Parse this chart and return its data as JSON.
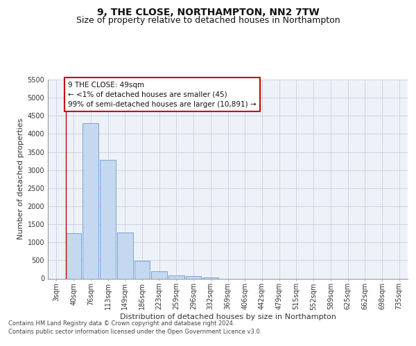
{
  "title": "9, THE CLOSE, NORTHAMPTON, NN2 7TW",
  "subtitle": "Size of property relative to detached houses in Northampton",
  "xlabel": "Distribution of detached houses by size in Northampton",
  "ylabel": "Number of detached properties",
  "categories": [
    "3sqm",
    "40sqm",
    "76sqm",
    "113sqm",
    "149sqm",
    "186sqm",
    "223sqm",
    "259sqm",
    "296sqm",
    "332sqm",
    "369sqm",
    "406sqm",
    "442sqm",
    "479sqm",
    "515sqm",
    "552sqm",
    "589sqm",
    "625sqm",
    "662sqm",
    "698sqm",
    "735sqm"
  ],
  "bar_values": [
    0,
    1260,
    4300,
    3280,
    1270,
    480,
    195,
    95,
    75,
    35,
    0,
    0,
    0,
    0,
    0,
    0,
    0,
    0,
    0,
    0,
    0
  ],
  "bar_color": "#c5d8ef",
  "bar_edge_color": "#6699cc",
  "grid_color": "#c8d4e4",
  "background_color": "#eef2f8",
  "annotation_text": "9 THE CLOSE: 49sqm\n← <1% of detached houses are smaller (45)\n99% of semi-detached houses are larger (10,891) →",
  "annotation_box_color": "#ffffff",
  "annotation_box_edge": "#cc0000",
  "red_line_x": 1.5,
  "ylim": [
    0,
    5500
  ],
  "yticks": [
    0,
    500,
    1000,
    1500,
    2000,
    2500,
    3000,
    3500,
    4000,
    4500,
    5000,
    5500
  ],
  "footer_line1": "Contains HM Land Registry data © Crown copyright and database right 2024.",
  "footer_line2": "Contains public sector information licensed under the Open Government Licence v3.0.",
  "title_fontsize": 10,
  "subtitle_fontsize": 9,
  "axis_label_fontsize": 8,
  "tick_fontsize": 7,
  "annotation_fontsize": 7.5,
  "footer_fontsize": 6
}
